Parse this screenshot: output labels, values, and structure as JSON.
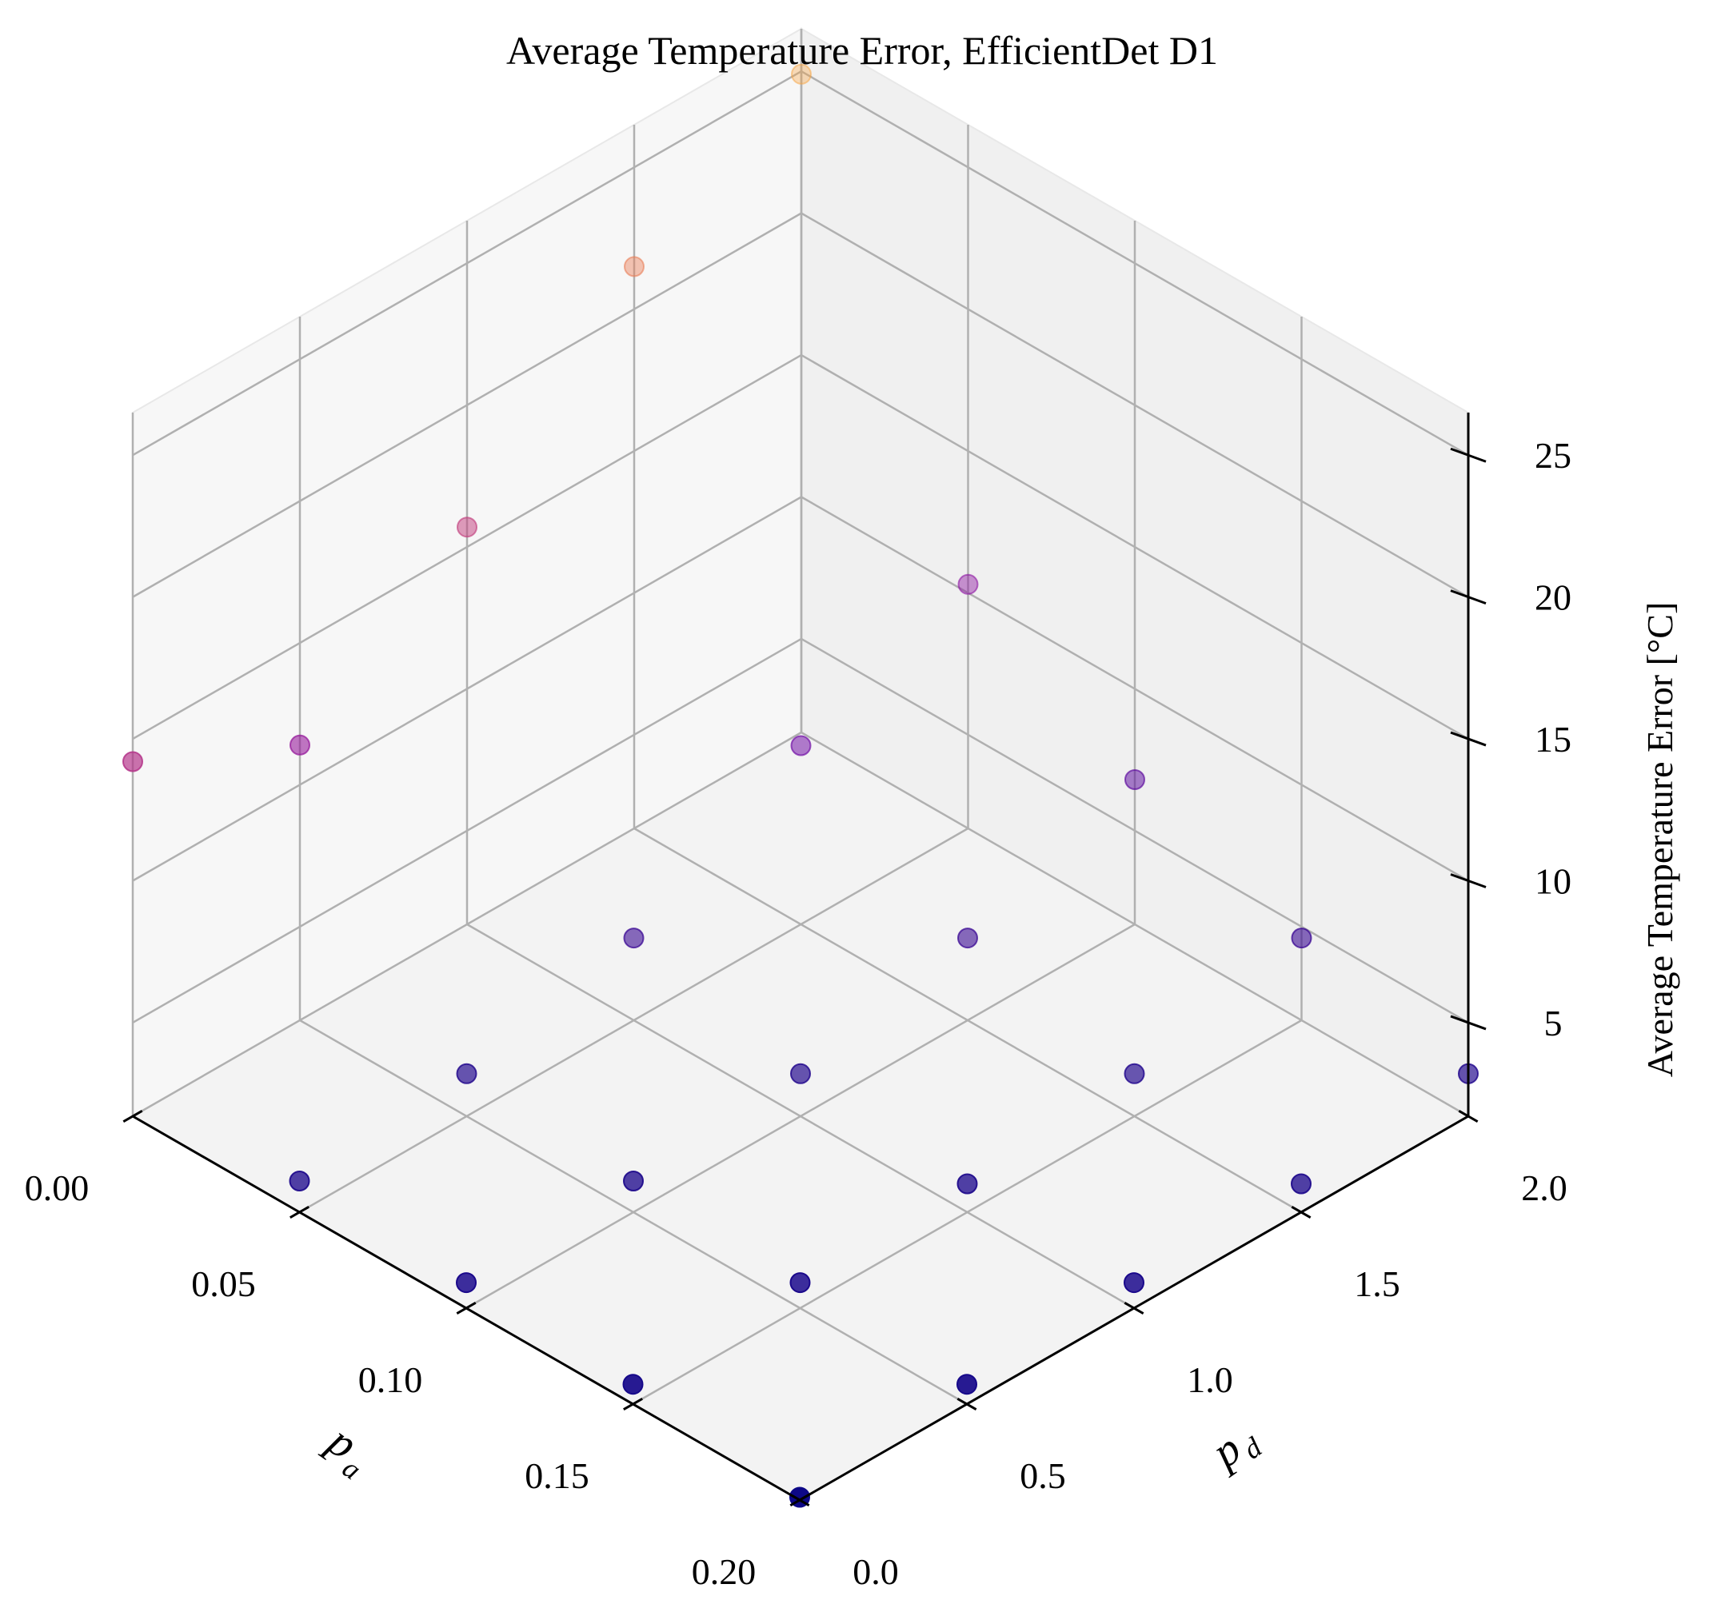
{
  "chart_data": {
    "type": "scatter",
    "subtype": "3d",
    "title": "Average Temperature Error, EfficientDet D1",
    "xlabel": "p",
    "xlabel_sub": "a",
    "ylabel": "p",
    "ylabel_sub": "d",
    "zlabel": "Average Temperature Error [°C]",
    "x_ticks": [
      "0.00",
      "0.05",
      "0.10",
      "0.15",
      "0.20"
    ],
    "y_ticks": [
      "0.0",
      "0.5",
      "1.0",
      "1.5",
      "2.0"
    ],
    "z_ticks": [
      "5",
      "10",
      "15",
      "20",
      "25"
    ],
    "xlim": [
      0.0,
      0.2
    ],
    "ylim": [
      0.0,
      2.0
    ],
    "zlim": [
      1.7,
      26.5
    ],
    "grid": true,
    "colormap": "plasma",
    "points": [
      {
        "x": 0.2,
        "y": 0.0,
        "z": 1.8
      },
      {
        "x": 0.15,
        "y": 0.0,
        "z": 2.4
      },
      {
        "x": 0.2,
        "y": 0.5,
        "z": 2.4
      },
      {
        "x": 0.1,
        "y": 0.0,
        "z": 2.6
      },
      {
        "x": 0.15,
        "y": 0.5,
        "z": 2.6
      },
      {
        "x": 0.2,
        "y": 1.0,
        "z": 2.6
      },
      {
        "x": 0.05,
        "y": 0.0,
        "z": 2.8
      },
      {
        "x": 0.1,
        "y": 0.5,
        "z": 2.8
      },
      {
        "x": 0.15,
        "y": 1.0,
        "z": 2.7
      },
      {
        "x": 0.2,
        "y": 1.5,
        "z": 2.7
      },
      {
        "x": 0.05,
        "y": 0.5,
        "z": 3.2
      },
      {
        "x": 0.1,
        "y": 1.0,
        "z": 3.2
      },
      {
        "x": 0.15,
        "y": 1.5,
        "z": 3.2
      },
      {
        "x": 0.2,
        "y": 2.0,
        "z": 3.2
      },
      {
        "x": 0.05,
        "y": 1.0,
        "z": 4.6
      },
      {
        "x": 0.1,
        "y": 1.5,
        "z": 4.6
      },
      {
        "x": 0.15,
        "y": 2.0,
        "z": 4.6
      },
      {
        "x": 0.1,
        "y": 2.0,
        "z": 6.8
      },
      {
        "x": 0.05,
        "y": 1.5,
        "z": 8.0
      },
      {
        "x": 0.05,
        "y": 2.0,
        "z": 10.3
      },
      {
        "x": 0.0,
        "y": 0.5,
        "z": 11.4
      },
      {
        "x": 0.0,
        "y": 0.0,
        "z": 14.2
      },
      {
        "x": 0.0,
        "y": 1.0,
        "z": 15.7
      },
      {
        "x": 0.0,
        "y": 1.5,
        "z": 21.5
      },
      {
        "x": 0.0,
        "y": 2.0,
        "z": 24.9
      }
    ]
  }
}
